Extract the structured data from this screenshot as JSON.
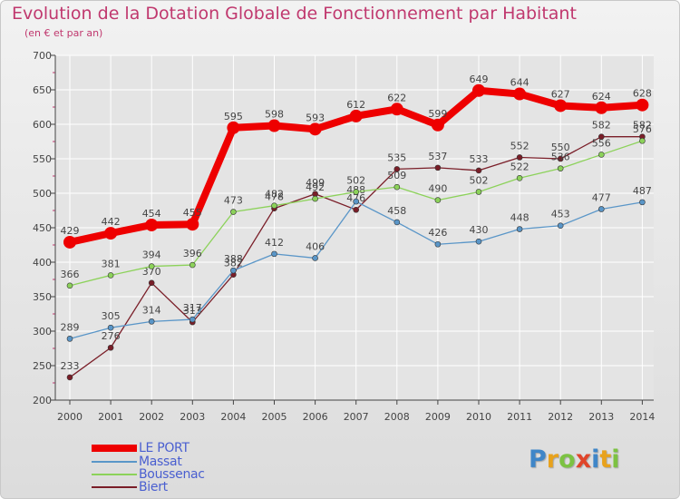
{
  "colors": {
    "title": "#c0386e",
    "axis": "#444444",
    "grid": "#ffffff",
    "legend_text": "#4a5fd0"
  },
  "chart_data": {
    "type": "line",
    "title": "Evolution de la Dotation Globale de Fonctionnement par Habitant",
    "subtitle": "(en € et par an)",
    "xlabel": "",
    "ylabel": "",
    "ylim": [
      200,
      700
    ],
    "yticks": [
      "200",
      "250",
      "300",
      "350",
      "400",
      "450",
      "500",
      "550",
      "600",
      "650",
      "700"
    ],
    "categories": [
      "2000",
      "2001",
      "2002",
      "2003",
      "2004",
      "2005",
      "2006",
      "2007",
      "2008",
      "2009",
      "2010",
      "2011",
      "2012",
      "2013",
      "2014"
    ],
    "series": [
      {
        "name": "Biert",
        "color": "#7a1e28",
        "values": [
          233,
          276,
          370,
          313,
          382,
          478,
          499,
          476,
          535,
          537,
          533,
          552,
          550,
          582,
          582
        ]
      },
      {
        "name": "Massat",
        "color": "#5a96c8",
        "values": [
          289,
          305,
          314,
          317,
          388,
          412,
          406,
          488,
          458,
          426,
          430,
          448,
          453,
          477,
          487
        ]
      },
      {
        "name": "Boussenac",
        "color": "#8cd25a",
        "values": [
          366,
          381,
          394,
          396,
          473,
          482,
          492,
          502,
          509,
          490,
          502,
          522,
          536,
          556,
          576
        ]
      },
      {
        "name": "LE PORT",
        "color": "#ee0000",
        "values": [
          429,
          442,
          454,
          455,
          595,
          598,
          593,
          612,
          622,
          599,
          649,
          644,
          627,
          624,
          628
        ]
      }
    ],
    "legend": [
      "LE PORT",
      "Massat",
      "Boussenac",
      "Biert"
    ],
    "legend_position": "bottom-left",
    "grid": true
  },
  "logo": {
    "letters": [
      "P",
      "r",
      "o",
      "x",
      "i",
      "t",
      "i"
    ]
  }
}
